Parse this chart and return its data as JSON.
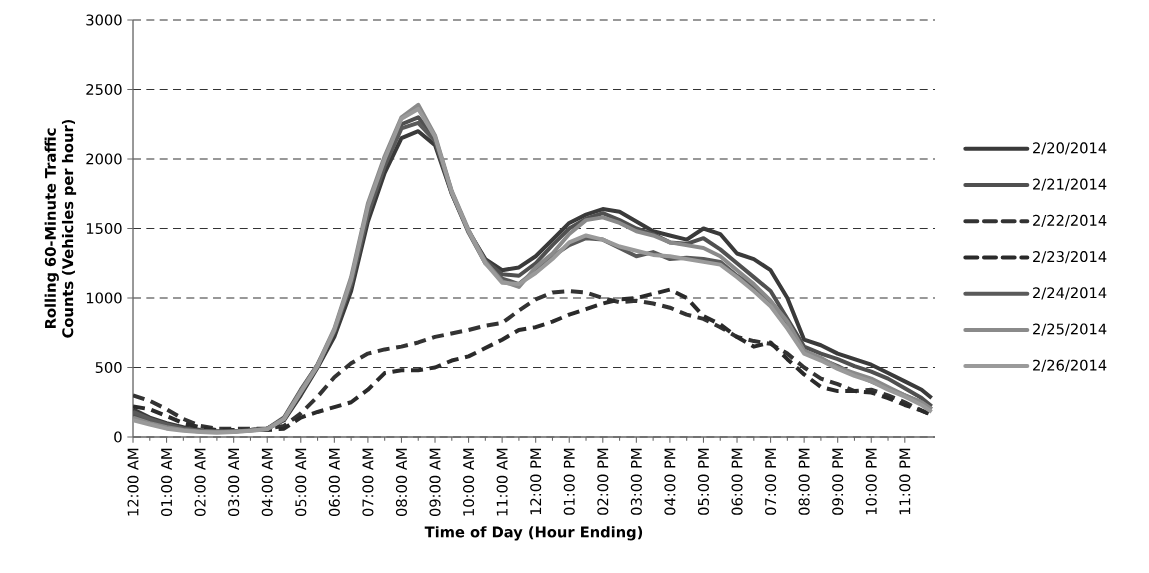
{
  "chart_data": {
    "type": "line",
    "xlabel": "Time of Day (Hour Ending)",
    "ylabel": "Rolling 60-Minute Traffic Counts (Vehicles per hour)",
    "x": [
      0,
      0.5,
      1,
      1.5,
      2,
      2.5,
      3,
      3.5,
      4,
      4.5,
      5,
      5.5,
      6,
      6.5,
      7,
      7.5,
      8,
      8.5,
      9,
      9.5,
      10,
      10.5,
      11,
      11.5,
      12,
      12.5,
      13,
      13.5,
      14,
      14.5,
      15,
      15.5,
      16,
      16.5,
      17,
      17.5,
      18,
      18.5,
      19,
      19.5,
      20,
      20.5,
      21,
      21.5,
      22,
      22.5,
      23,
      23.5,
      23.8
    ],
    "xlim": [
      0,
      23.9
    ],
    "xticks": [
      {
        "value": 0,
        "label": "12:00 AM"
      },
      {
        "value": 1,
        "label": "01:00 AM"
      },
      {
        "value": 2,
        "label": "02:00 AM"
      },
      {
        "value": 3,
        "label": "03:00 AM"
      },
      {
        "value": 4,
        "label": "04:00 AM"
      },
      {
        "value": 5,
        "label": "05:00 AM"
      },
      {
        "value": 6,
        "label": "06:00 AM"
      },
      {
        "value": 7,
        "label": "07:00 AM"
      },
      {
        "value": 8,
        "label": "08:00 AM"
      },
      {
        "value": 9,
        "label": "09:00 AM"
      },
      {
        "value": 10,
        "label": "10:00 AM"
      },
      {
        "value": 11,
        "label": "11:00 AM"
      },
      {
        "value": 12,
        "label": "12:00 PM"
      },
      {
        "value": 13,
        "label": "01:00 PM"
      },
      {
        "value": 14,
        "label": "02:00 PM"
      },
      {
        "value": 15,
        "label": "03:00 PM"
      },
      {
        "value": 16,
        "label": "04:00 PM"
      },
      {
        "value": 17,
        "label": "05:00 PM"
      },
      {
        "value": 18,
        "label": "06:00 PM"
      },
      {
        "value": 19,
        "label": "07:00 PM"
      },
      {
        "value": 20,
        "label": "08:00 PM"
      },
      {
        "value": 21,
        "label": "09:00 PM"
      },
      {
        "value": 22,
        "label": "10:00 PM"
      },
      {
        "value": 23,
        "label": "11:00 PM"
      }
    ],
    "ylim": [
      0,
      3000
    ],
    "yticks": [
      0,
      500,
      1000,
      1500,
      2000,
      2500,
      3000
    ],
    "grid": "y",
    "legend": "right",
    "marker": "none",
    "series": [
      {
        "name": "2/20/2014",
        "color": "#3a3a3a",
        "line_style": "solid",
        "values": [
          200,
          140,
          100,
          70,
          50,
          40,
          40,
          50,
          60,
          120,
          300,
          500,
          720,
          1050,
          1550,
          1900,
          2150,
          2200,
          2100,
          1750,
          1480,
          1280,
          1200,
          1220,
          1300,
          1420,
          1540,
          1600,
          1640,
          1620,
          1550,
          1480,
          1450,
          1420,
          1500,
          1460,
          1320,
          1280,
          1200,
          1000,
          700,
          660,
          600,
          560,
          520,
          460,
          400,
          340,
          280
        ]
      },
      {
        "name": "2/21/2014",
        "color": "#505050",
        "line_style": "solid",
        "values": [
          160,
          120,
          90,
          60,
          45,
          40,
          40,
          50,
          60,
          130,
          330,
          520,
          760,
          1100,
          1620,
          1980,
          2250,
          2300,
          2150,
          1760,
          1480,
          1270,
          1170,
          1160,
          1250,
          1380,
          1500,
          1570,
          1610,
          1560,
          1500,
          1460,
          1400,
          1390,
          1430,
          1350,
          1250,
          1150,
          1050,
          850,
          650,
          600,
          560,
          510,
          470,
          420,
          350,
          280,
          220
        ]
      },
      {
        "name": "2/22/2014",
        "color": "#333333",
        "line_style": "dashed",
        "values": [
          300,
          260,
          200,
          130,
          80,
          60,
          60,
          60,
          60,
          80,
          170,
          290,
          430,
          530,
          600,
          630,
          650,
          680,
          720,
          745,
          770,
          800,
          820,
          910,
          990,
          1040,
          1050,
          1040,
          1000,
          970,
          980,
          960,
          930,
          880,
          850,
          790,
          720,
          690,
          670,
          600,
          500,
          420,
          380,
          330,
          340,
          300,
          250,
          190,
          160
        ]
      },
      {
        "name": "2/23/2014",
        "color": "#2a2a2a",
        "line_style": "dashed",
        "values": [
          220,
          200,
          150,
          100,
          70,
          50,
          50,
          50,
          50,
          60,
          140,
          180,
          215,
          250,
          340,
          460,
          480,
          480,
          500,
          550,
          580,
          640,
          700,
          770,
          790,
          830,
          880,
          920,
          960,
          990,
          1000,
          1030,
          1060,
          1000,
          870,
          810,
          720,
          650,
          680,
          560,
          450,
          360,
          330,
          330,
          320,
          280,
          230,
          190,
          160
        ]
      },
      {
        "name": "2/24/2014",
        "color": "#5a5a5a",
        "line_style": "solid",
        "values": [
          180,
          130,
          90,
          60,
          45,
          40,
          40,
          50,
          60,
          140,
          340,
          520,
          760,
          1100,
          1600,
          1950,
          2220,
          2260,
          2130,
          1750,
          1470,
          1250,
          1140,
          1100,
          1200,
          1300,
          1380,
          1430,
          1420,
          1360,
          1300,
          1330,
          1280,
          1290,
          1280,
          1260,
          1160,
          1080,
          950,
          800,
          620,
          560,
          510,
          450,
          400,
          350,
          300,
          250,
          200
        ]
      },
      {
        "name": "2/25/2014",
        "color": "#8a8a8a",
        "line_style": "solid",
        "values": [
          140,
          100,
          70,
          50,
          40,
          35,
          40,
          45,
          60,
          130,
          330,
          520,
          780,
          1150,
          1680,
          2020,
          2300,
          2390,
          2170,
          1770,
          1490,
          1260,
          1120,
          1080,
          1220,
          1320,
          1460,
          1560,
          1580,
          1540,
          1480,
          1450,
          1400,
          1380,
          1360,
          1300,
          1200,
          1100,
          980,
          830,
          620,
          570,
          500,
          460,
          420,
          360,
          300,
          250,
          200
        ]
      },
      {
        "name": "2/26/2014",
        "color": "#9a9a9a",
        "line_style": "solid",
        "values": [
          120,
          90,
          60,
          45,
          35,
          30,
          35,
          45,
          55,
          130,
          320,
          510,
          770,
          1130,
          1660,
          2000,
          2290,
          2360,
          2160,
          1760,
          1480,
          1250,
          1110,
          1100,
          1180,
          1280,
          1400,
          1450,
          1420,
          1370,
          1340,
          1310,
          1300,
          1280,
          1260,
          1240,
          1150,
          1050,
          940,
          780,
          600,
          550,
          490,
          440,
          400,
          340,
          290,
          230,
          180
        ]
      }
    ]
  }
}
